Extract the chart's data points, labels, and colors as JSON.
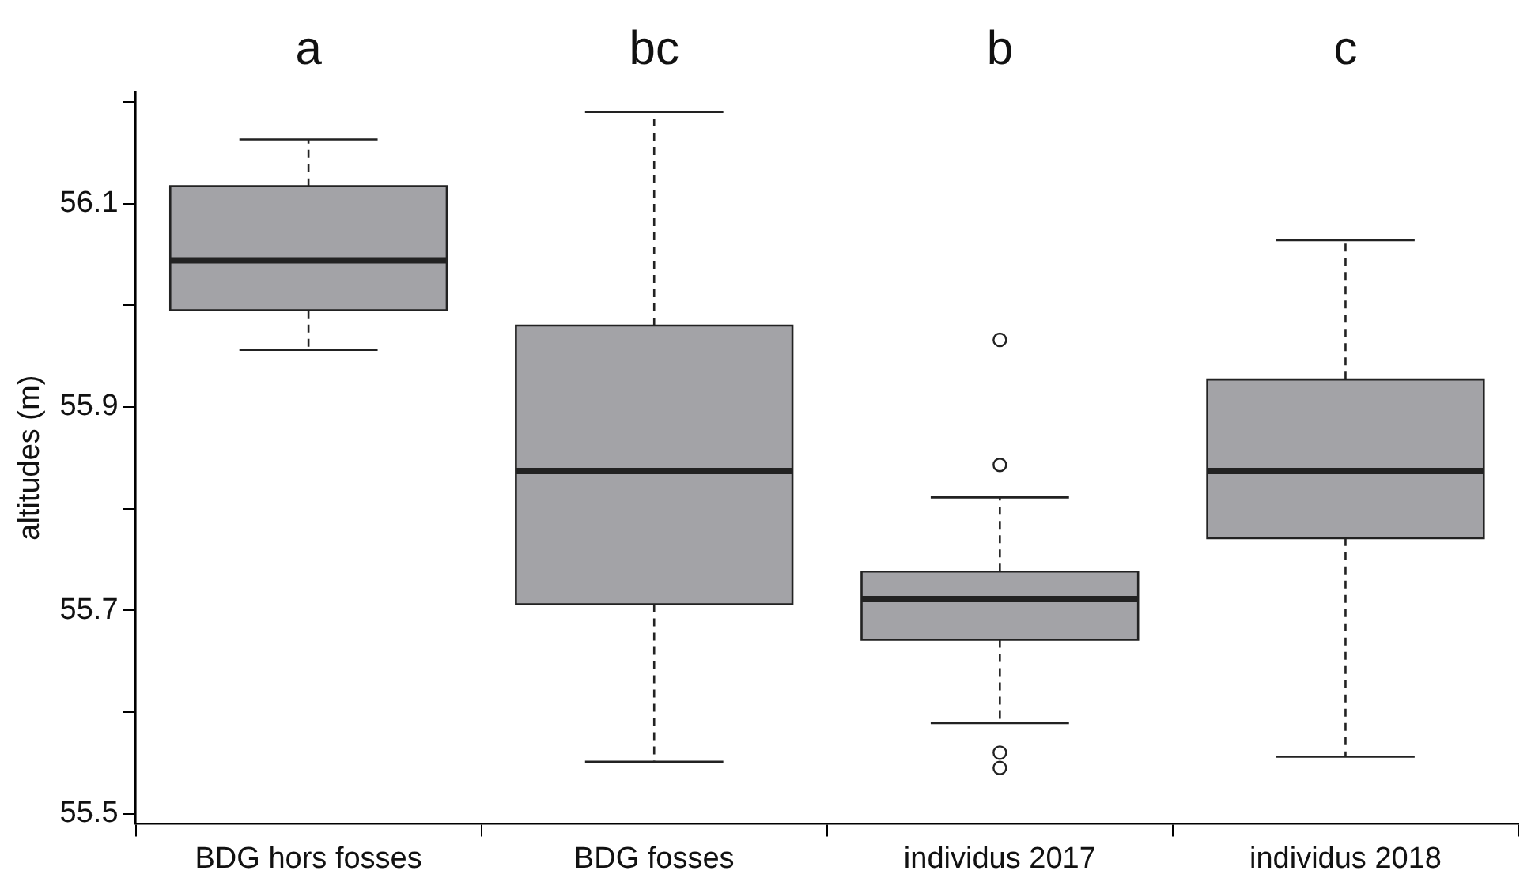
{
  "chart_data": {
    "type": "box",
    "ylabel": "altitudes (m)",
    "categories": [
      "BDG hors fosses",
      "BDG fosses",
      "individus 2017",
      "individus 2018"
    ],
    "series": [
      {
        "color": "#a3a3a7",
        "boxes": [
          {
            "low": 55.956,
            "q1": 55.995,
            "median": 56.044,
            "q3": 56.117,
            "high": 56.163
          },
          {
            "low": 55.551,
            "q1": 55.706,
            "median": 55.837,
            "q3": 55.98,
            "high": 56.19
          },
          {
            "low": 55.589,
            "q1": 55.671,
            "median": 55.711,
            "q3": 55.738,
            "high": 55.811,
            "outliers": [
              55.966,
              55.843,
              55.56,
              55.545
            ]
          },
          {
            "low": 55.556,
            "q1": 55.771,
            "median": 55.837,
            "q3": 55.927,
            "high": 56.064
          }
        ]
      }
    ],
    "ylim": [
      55.49,
      56.21
    ],
    "yticks": [
      55.5,
      {
        "value": 55.6,
        "label": null
      },
      55.7,
      {
        "value": 55.8,
        "label": null
      },
      55.9,
      {
        "value": 56.0,
        "label": null
      },
      56.1,
      {
        "value": 56.2,
        "label": null
      }
    ],
    "annotations": [
      "a",
      "bc",
      "b",
      "c"
    ],
    "grid": false,
    "legend": false
  }
}
